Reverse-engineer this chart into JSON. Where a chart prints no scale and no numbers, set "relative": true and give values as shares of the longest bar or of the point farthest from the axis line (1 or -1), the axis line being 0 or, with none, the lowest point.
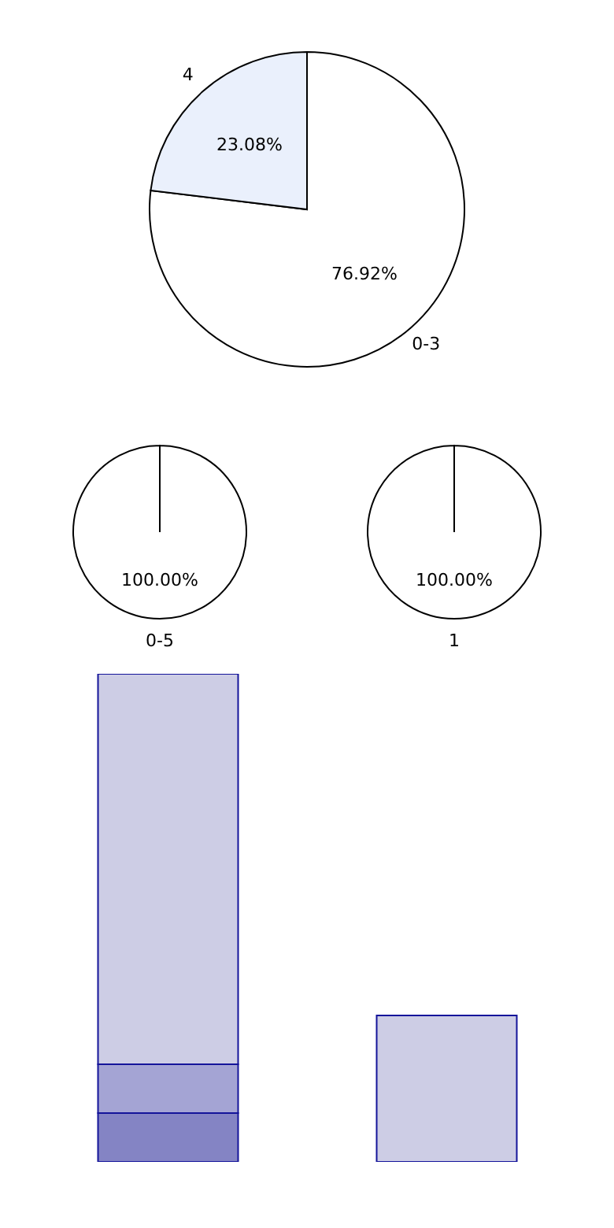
{
  "chart_data": [
    {
      "type": "pie",
      "categories": [
        "0-3",
        "4"
      ],
      "values": [
        76.92,
        23.08
      ],
      "colors": [
        "#ffffff",
        "#eaf0fc"
      ],
      "value_labels": [
        "76.92%",
        "23.08%"
      ]
    },
    {
      "type": "pie",
      "categories": [
        "0-5"
      ],
      "values": [
        100
      ],
      "colors": [
        "#ffffff"
      ],
      "value_labels": [
        "100.00%"
      ]
    },
    {
      "type": "pie",
      "categories": [
        "1"
      ],
      "values": [
        100
      ],
      "colors": [
        "#ffffff"
      ],
      "value_labels": [
        "100.00%"
      ]
    },
    {
      "type": "bar",
      "relative": true,
      "stacked": true,
      "categories": [
        null,
        null
      ],
      "series": [
        {
          "color": "#8484c4",
          "values": [
            0.1,
            null
          ]
        },
        {
          "color": "#a4a4d4",
          "values": [
            0.1,
            null
          ]
        },
        {
          "color": "#cdcde5",
          "values": [
            0.8,
            0.3
          ]
        }
      ]
    }
  ]
}
